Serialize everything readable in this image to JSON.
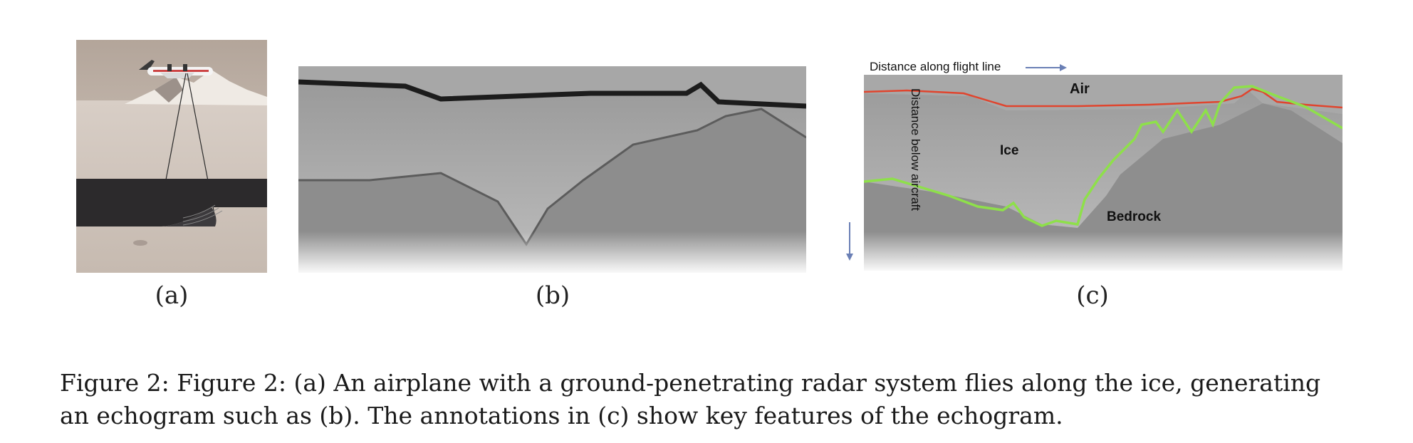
{
  "figure": {
    "subfigure_labels": [
      "(a)",
      "(b)",
      "(c)"
    ],
    "annotations": {
      "distance_along": "Distance along flight line",
      "distance_below": "Distance below aircraft",
      "air": "Air",
      "ice": "Ice",
      "bedrock": "Bedrock"
    },
    "line_colors": {
      "surface": "#e0452e",
      "bedrock": "#8ee04a",
      "arrow": "#6a7fb5"
    },
    "caption": "Figure 2: Figure 2: (a) An airplane with a ground-penetrating radar system flies along the ice, generating an echogram such as (b). The annotations in (c) show key features of the echogram."
  }
}
